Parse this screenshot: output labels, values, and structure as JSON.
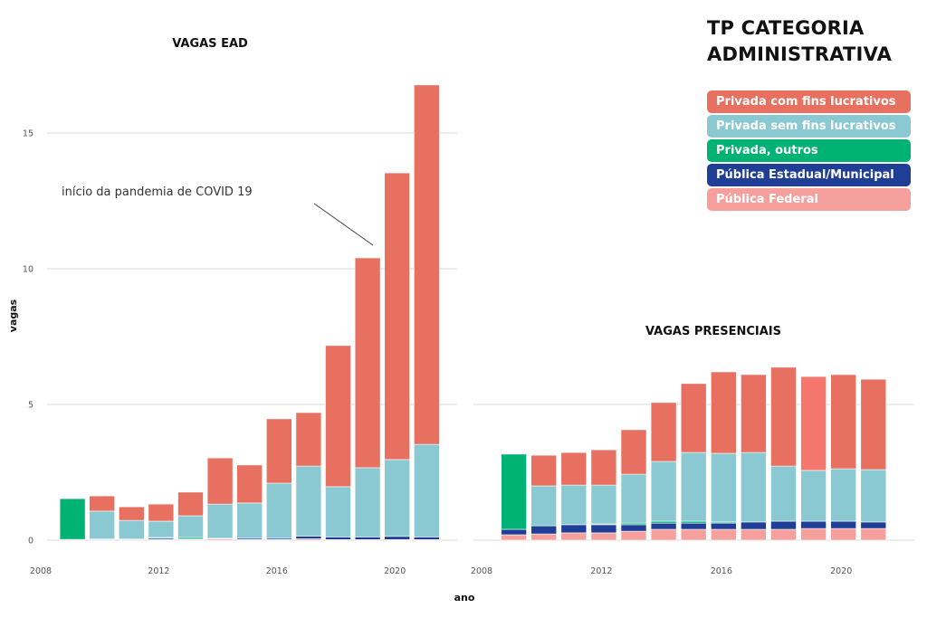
{
  "legend": {
    "title_line1": "TP CATEGORIA",
    "title_line2": "ADMINISTRATIVA",
    "items": [
      {
        "label": "Privada com fins lucrativos",
        "color": "#E87060"
      },
      {
        "label": "Privada sem fins lucrativos",
        "color": "#8AC9D1"
      },
      {
        "label": "Privada, outros",
        "color": "#00B273"
      },
      {
        "label": "Pública Estadual/Municipal",
        "color": "#1F3F96"
      },
      {
        "label": "Pública Federal",
        "color": "#F5A09D"
      }
    ]
  },
  "chart_data": [
    {
      "type": "bar",
      "stacked": true,
      "title": "VAGAS EAD",
      "xlabel": "ano",
      "ylabel": "vagas",
      "ylim": [
        0,
        17
      ],
      "yticks": [
        0,
        5,
        10,
        15
      ],
      "xlim": [
        2008,
        2022
      ],
      "xticks": [
        2008,
        2012,
        2016,
        2020
      ],
      "grid": "horizontal",
      "annotation": {
        "text": "início da pandemia de COVID 19",
        "points_to": 2019
      },
      "categories": [
        2009,
        2010,
        2011,
        2012,
        2013,
        2014,
        2015,
        2016,
        2017,
        2018,
        2019,
        2020,
        2021
      ],
      "series": [
        {
          "name": "Pública Federal",
          "values": [
            0.03,
            0.02,
            0.02,
            0.02,
            0.02,
            0.05,
            0.02,
            0.02,
            0.05,
            0.02,
            0.02,
            0.02,
            0.02
          ]
        },
        {
          "name": "Pública Estadual/Municipal",
          "values": [
            0.0,
            0.03,
            0.03,
            0.05,
            0.02,
            0.02,
            0.05,
            0.05,
            0.1,
            0.1,
            0.1,
            0.12,
            0.1
          ]
        },
        {
          "name": "Privada, outros",
          "values": [
            1.5,
            0.0,
            0.0,
            0.03,
            0.06,
            0.0,
            0.0,
            0.0,
            0.0,
            0.0,
            0.0,
            0.0,
            0.0
          ]
        },
        {
          "name": "Privada sem fins lucrativos",
          "values": [
            0.0,
            1.02,
            0.68,
            0.6,
            0.8,
            1.26,
            1.3,
            2.03,
            2.58,
            1.85,
            2.55,
            2.83,
            3.41
          ]
        },
        {
          "name": "Privada com fins lucrativos",
          "values": [
            0.0,
            0.56,
            0.5,
            0.63,
            0.87,
            1.7,
            1.4,
            2.37,
            1.97,
            5.2,
            7.73,
            10.56,
            13.24
          ]
        }
      ]
    },
    {
      "type": "bar",
      "stacked": true,
      "title": "VAGAS PRESENCIAIS",
      "xlabel": "ano",
      "ylabel": "vagas",
      "ylim": [
        0,
        17
      ],
      "yticks": [
        0,
        5,
        10,
        15
      ],
      "xlim": [
        2008,
        2022
      ],
      "xticks": [
        2008,
        2012,
        2016,
        2020
      ],
      "grid": "horizontal",
      "categories": [
        2009,
        2010,
        2011,
        2012,
        2013,
        2014,
        2015,
        2016,
        2017,
        2018,
        2019,
        2020,
        2021
      ],
      "series": [
        {
          "name": "Pública Federal",
          "values": [
            0.2,
            0.23,
            0.27,
            0.27,
            0.33,
            0.4,
            0.4,
            0.4,
            0.4,
            0.4,
            0.43,
            0.43,
            0.43
          ]
        },
        {
          "name": "Pública Estadual/Municipal",
          "values": [
            0.2,
            0.3,
            0.3,
            0.3,
            0.24,
            0.23,
            0.23,
            0.23,
            0.27,
            0.3,
            0.27,
            0.27,
            0.24
          ]
        },
        {
          "name": "Privada, outros",
          "values": [
            2.77,
            0.0,
            0.0,
            0.03,
            0.06,
            0.07,
            0.07,
            0.04,
            0.0,
            0.0,
            0.0,
            0.0,
            0.0
          ]
        },
        {
          "name": "Privada sem fins lucrativos",
          "values": [
            0.0,
            1.47,
            1.46,
            1.43,
            1.8,
            2.2,
            2.53,
            2.53,
            2.56,
            2.03,
            1.87,
            1.93,
            1.93
          ]
        },
        {
          "name": "Privada com fins lucrativos",
          "values": [
            0.0,
            1.13,
            1.2,
            1.3,
            1.64,
            2.17,
            2.54,
            3.0,
            2.87,
            3.64,
            3.46,
            3.47,
            3.33
          ]
        }
      ]
    }
  ]
}
